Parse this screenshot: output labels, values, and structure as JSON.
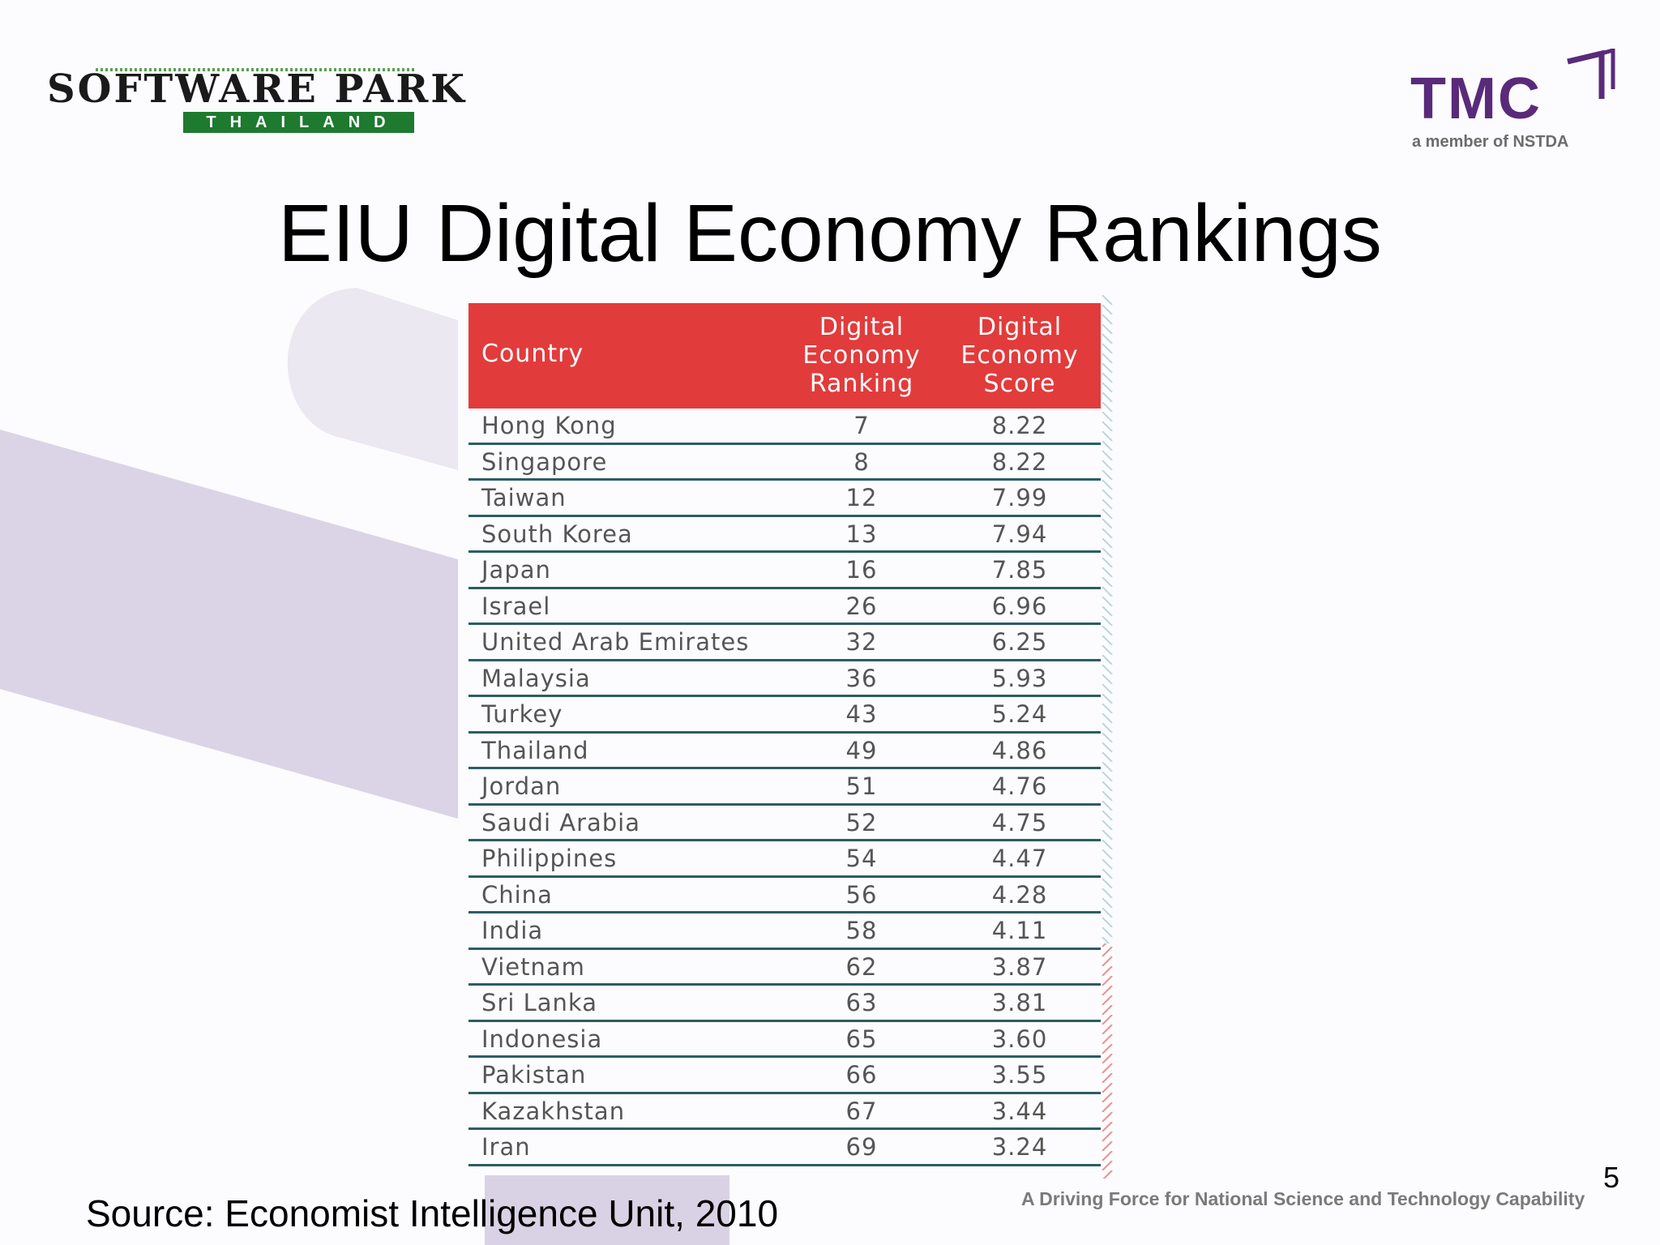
{
  "slide": {
    "title": "EIU Digital Economy Rankings",
    "source": "Source:  Economist Intelligence Unit, 2010",
    "tagline": "A Driving Force for National Science and Technology Capability",
    "page_number": "5"
  },
  "logos": {
    "software_park": {
      "top": "SOFTWARE PARK",
      "bottom": "THAILAND"
    },
    "tmc": {
      "name": "TMC",
      "subtitle": "a member of NSTDA"
    }
  },
  "colors": {
    "header_red": "#e23b3b",
    "row_rule": "#2a5e63",
    "tmc_purple": "#5a2a7a",
    "software_park_green": "#1d7a2f",
    "background_band": "#d9d2e4"
  },
  "table": {
    "headers": {
      "country": "Country",
      "ranking": [
        "Digital",
        "Economy",
        "Ranking"
      ],
      "score": [
        "Digital",
        "Economy",
        "Score"
      ]
    },
    "rows": [
      {
        "country": "Hong Kong",
        "rank": "7",
        "score": "8.22"
      },
      {
        "country": "Singapore",
        "rank": "8",
        "score": "8.22"
      },
      {
        "country": "Taiwan",
        "rank": "12",
        "score": "7.99"
      },
      {
        "country": "South Korea",
        "rank": "13",
        "score": "7.94"
      },
      {
        "country": "Japan",
        "rank": "16",
        "score": "7.85"
      },
      {
        "country": "Israel",
        "rank": "26",
        "score": "6.96"
      },
      {
        "country": "United Arab Emirates",
        "rank": "32",
        "score": "6.25"
      },
      {
        "country": "Malaysia",
        "rank": "36",
        "score": "5.93"
      },
      {
        "country": "Turkey",
        "rank": "43",
        "score": "5.24"
      },
      {
        "country": "Thailand",
        "rank": "49",
        "score": "4.86"
      },
      {
        "country": "Jordan",
        "rank": "51",
        "score": "4.76"
      },
      {
        "country": "Saudi Arabia",
        "rank": "52",
        "score": "4.75"
      },
      {
        "country": "Philippines",
        "rank": "54",
        "score": "4.47"
      },
      {
        "country": "China",
        "rank": "56",
        "score": "4.28"
      },
      {
        "country": "India",
        "rank": "58",
        "score": "4.11"
      },
      {
        "country": "Vietnam",
        "rank": "62",
        "score": "3.87"
      },
      {
        "country": "Sri Lanka",
        "rank": "63",
        "score": "3.81"
      },
      {
        "country": "Indonesia",
        "rank": "65",
        "score": "3.60"
      },
      {
        "country": "Pakistan",
        "rank": "66",
        "score": "3.55"
      },
      {
        "country": "Kazakhstan",
        "rank": "67",
        "score": "3.44"
      },
      {
        "country": "Iran",
        "rank": "69",
        "score": "3.24"
      }
    ]
  }
}
